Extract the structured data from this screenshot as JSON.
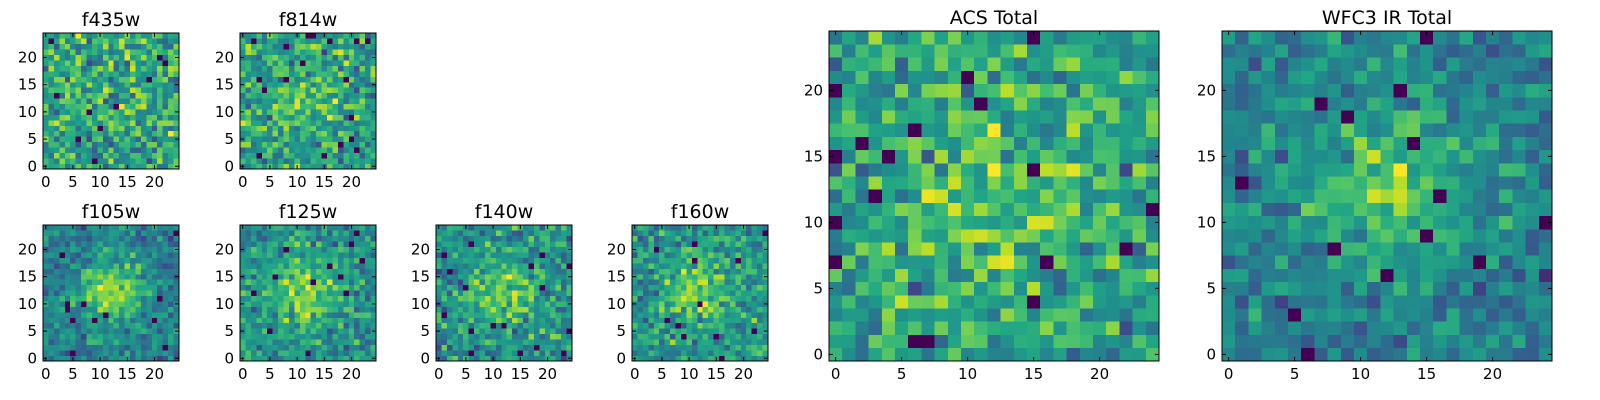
{
  "figure": {
    "colormap": "viridis"
  },
  "chart_data": [
    {
      "type": "heatmap",
      "title": "f435w",
      "size": 25,
      "seed": 11,
      "blob": 0.0,
      "xticks": [
        0,
        5,
        10,
        15,
        20
      ],
      "yticks": [
        0,
        5,
        10,
        15,
        20
      ],
      "xlim": [
        -0.5,
        24.5
      ],
      "ylim": [
        -0.5,
        24.5
      ]
    },
    {
      "type": "heatmap",
      "title": "f814w",
      "size": 25,
      "seed": 23,
      "blob": 0.35,
      "xticks": [
        0,
        5,
        10,
        15,
        20
      ],
      "yticks": [
        0,
        5,
        10,
        15,
        20
      ],
      "xlim": [
        -0.5,
        24.5
      ],
      "ylim": [
        -0.5,
        24.5
      ]
    },
    {
      "type": "heatmap",
      "title": "f105w",
      "size": 25,
      "seed": 37,
      "blob": 0.9,
      "xticks": [
        0,
        5,
        10,
        15,
        20
      ],
      "yticks": [
        0,
        5,
        10,
        15,
        20
      ],
      "xlim": [
        -0.5,
        24.5
      ],
      "ylim": [
        -0.5,
        24.5
      ]
    },
    {
      "type": "heatmap",
      "title": "f125w",
      "size": 25,
      "seed": 41,
      "blob": 0.7,
      "xticks": [
        0,
        5,
        10,
        15,
        20
      ],
      "yticks": [
        0,
        5,
        10,
        15,
        20
      ],
      "xlim": [
        -0.5,
        24.5
      ],
      "ylim": [
        -0.5,
        24.5
      ]
    },
    {
      "type": "heatmap",
      "title": "f140w",
      "size": 25,
      "seed": 53,
      "blob": 0.55,
      "xticks": [
        0,
        5,
        10,
        15,
        20
      ],
      "yticks": [
        0,
        5,
        10,
        15,
        20
      ],
      "xlim": [
        -0.5,
        24.5
      ],
      "ylim": [
        -0.5,
        24.5
      ]
    },
    {
      "type": "heatmap",
      "title": "f160w",
      "size": 25,
      "seed": 67,
      "blob": 0.6,
      "xticks": [
        0,
        5,
        10,
        15,
        20
      ],
      "yticks": [
        0,
        5,
        10,
        15,
        20
      ],
      "xlim": [
        -0.5,
        24.5
      ],
      "ylim": [
        -0.5,
        24.5
      ]
    },
    {
      "type": "heatmap",
      "title": "ACS Total",
      "size": 25,
      "seed": 79,
      "blob": 0.35,
      "xticks": [
        0,
        5,
        10,
        15,
        20
      ],
      "yticks": [
        0,
        5,
        10,
        15,
        20
      ],
      "xlim": [
        -0.5,
        24.5
      ],
      "ylim": [
        -0.5,
        24.5
      ]
    },
    {
      "type": "heatmap",
      "title": "WFC3 IR Total",
      "size": 25,
      "seed": 97,
      "blob": 0.85,
      "xticks": [
        0,
        5,
        10,
        15,
        20
      ],
      "yticks": [
        0,
        5,
        10,
        15,
        20
      ],
      "xlim": [
        -0.5,
        24.5
      ],
      "ylim": [
        -0.5,
        24.5
      ]
    }
  ]
}
